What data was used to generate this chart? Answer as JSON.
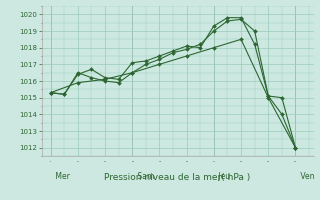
{
  "background_color": "#cce8e0",
  "grid_color": "#99ccbb",
  "line_color": "#2d6632",
  "xlabel": "Pression niveau de la mer( hPa )",
  "ylim": [
    1011.5,
    1020.5
  ],
  "yticks": [
    1012,
    1013,
    1014,
    1015,
    1016,
    1017,
    1018,
    1019,
    1020
  ],
  "day_labels": [
    " Mer",
    " Sam",
    " Jeu",
    " Ven"
  ],
  "day_positions": [
    0,
    36,
    72,
    108
  ],
  "xlim": [
    -4,
    116
  ],
  "series1_x": [
    0,
    6,
    12,
    18,
    24,
    30,
    36,
    42,
    48,
    54,
    60,
    66,
    72,
    78,
    84,
    90,
    96,
    102,
    108
  ],
  "series1_y": [
    1015.3,
    1015.2,
    1016.4,
    1016.7,
    1016.2,
    1016.1,
    1017.1,
    1017.2,
    1017.5,
    1017.8,
    1018.1,
    1018.0,
    1019.3,
    1019.8,
    1019.8,
    1018.2,
    1015.1,
    1014.0,
    1012.0
  ],
  "series2_x": [
    0,
    6,
    12,
    18,
    24,
    30,
    36,
    42,
    48,
    54,
    60,
    66,
    72,
    78,
    84,
    90,
    96,
    102,
    108
  ],
  "series2_y": [
    1015.3,
    1015.2,
    1016.5,
    1016.2,
    1016.0,
    1015.9,
    1016.5,
    1017.0,
    1017.3,
    1017.7,
    1017.9,
    1018.2,
    1019.0,
    1019.6,
    1019.7,
    1019.0,
    1015.1,
    1015.0,
    1012.0
  ],
  "series3_x": [
    0,
    12,
    24,
    36,
    48,
    60,
    72,
    84,
    96,
    108
  ],
  "series3_y": [
    1015.3,
    1015.9,
    1016.1,
    1016.5,
    1017.0,
    1017.5,
    1018.0,
    1018.5,
    1015.0,
    1012.0
  ]
}
